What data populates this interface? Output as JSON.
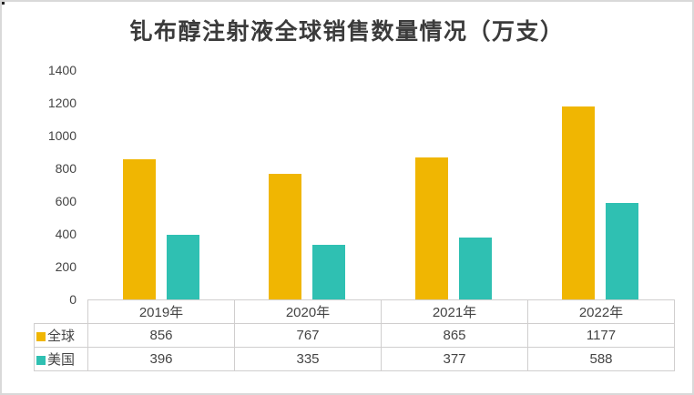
{
  "title": "钆布醇注射液全球销售数量情况（万支）",
  "colors": {
    "series_global": "#F0B602",
    "series_usa": "#2FC0B2",
    "axis_text": "#444444",
    "title_text": "#3B3B3B",
    "table_border": "#D0CECE",
    "outer_border": "#D9D9D9"
  },
  "chart_data": {
    "type": "bar",
    "title": "钆布醇注射液全球销售数量情况（万支）",
    "categories": [
      "2019年",
      "2020年",
      "2021年",
      "2022年"
    ],
    "series": [
      {
        "name": "全球",
        "color": "#F0B602",
        "values": [
          856,
          767,
          865,
          1177
        ]
      },
      {
        "name": "美国",
        "color": "#2FC0B2",
        "values": [
          396,
          335,
          377,
          588
        ]
      }
    ],
    "xlabel": "",
    "ylabel": "",
    "ylim": [
      0,
      1400
    ],
    "yticks": [
      0,
      200,
      400,
      600,
      800,
      1000,
      1200,
      1400
    ],
    "grid": false,
    "legend_position": "table-left",
    "data_table_shown": true
  }
}
